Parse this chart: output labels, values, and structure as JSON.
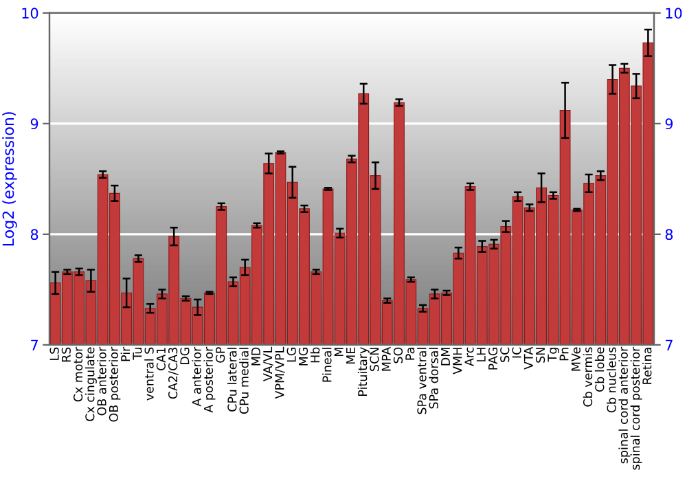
{
  "chart_data": {
    "type": "bar",
    "ylabel": "Log2 (expression)",
    "categories": [
      "LS",
      "RS",
      "Cx motor",
      "Cx cingulate",
      "OB anterior",
      "OB posterior",
      "Pir",
      "Tu",
      "ventral S",
      "CA1",
      "CA2/CA3",
      "DG",
      "A anterior",
      "A posterior",
      "GP",
      "CPu lateral",
      "CPu medial",
      "MD",
      "VA/VL",
      "VPM/VPL",
      "LG",
      "MG",
      "Hb",
      "Pineal",
      "M",
      "ME",
      "Pituitary",
      "SCN",
      "MPA",
      "SO",
      "Pa",
      "SPa ventral",
      "SPa dorsal",
      "DM",
      "VMH",
      "Arc",
      "LH",
      "PAG",
      "SC",
      "IC",
      "VTA",
      "SN",
      "Tg",
      "Pn",
      "MVe",
      "Cb vermis",
      "Cb lobe",
      "Cb nucleus",
      "spinal cord anterior",
      "spinal cord posterior",
      "Retina"
    ],
    "values": [
      7.56,
      7.66,
      7.66,
      7.58,
      8.54,
      8.37,
      7.47,
      7.78,
      7.33,
      7.46,
      7.98,
      7.42,
      7.34,
      7.47,
      8.25,
      7.57,
      7.7,
      8.08,
      8.64,
      8.74,
      8.47,
      8.23,
      7.66,
      8.41,
      8.01,
      8.68,
      9.27,
      8.53,
      7.4,
      9.19,
      7.59,
      7.33,
      7.46,
      7.47,
      7.83,
      8.43,
      7.89,
      7.91,
      8.07,
      8.34,
      8.24,
      8.42,
      8.35,
      9.12,
      8.22,
      8.46,
      8.53,
      9.4,
      9.5,
      9.34,
      9.73
    ],
    "errors": [
      0.1,
      0.02,
      0.03,
      0.1,
      0.03,
      0.07,
      0.13,
      0.03,
      0.04,
      0.04,
      0.08,
      0.02,
      0.07,
      0.01,
      0.03,
      0.04,
      0.07,
      0.02,
      0.09,
      0.01,
      0.14,
      0.03,
      0.02,
      0.01,
      0.04,
      0.03,
      0.09,
      0.12,
      0.02,
      0.03,
      0.02,
      0.03,
      0.04,
      0.02,
      0.05,
      0.03,
      0.05,
      0.04,
      0.05,
      0.04,
      0.03,
      0.13,
      0.03,
      0.25,
      0.01,
      0.08,
      0.04,
      0.13,
      0.04,
      0.11,
      0.12
    ],
    "color": "#c23a3a",
    "ylim": [
      7,
      10
    ],
    "yticks": [
      7,
      8,
      9,
      10
    ],
    "y2lim": [
      7,
      10
    ],
    "y2ticks": [
      7,
      8,
      9,
      10
    ],
    "grid": "y"
  }
}
